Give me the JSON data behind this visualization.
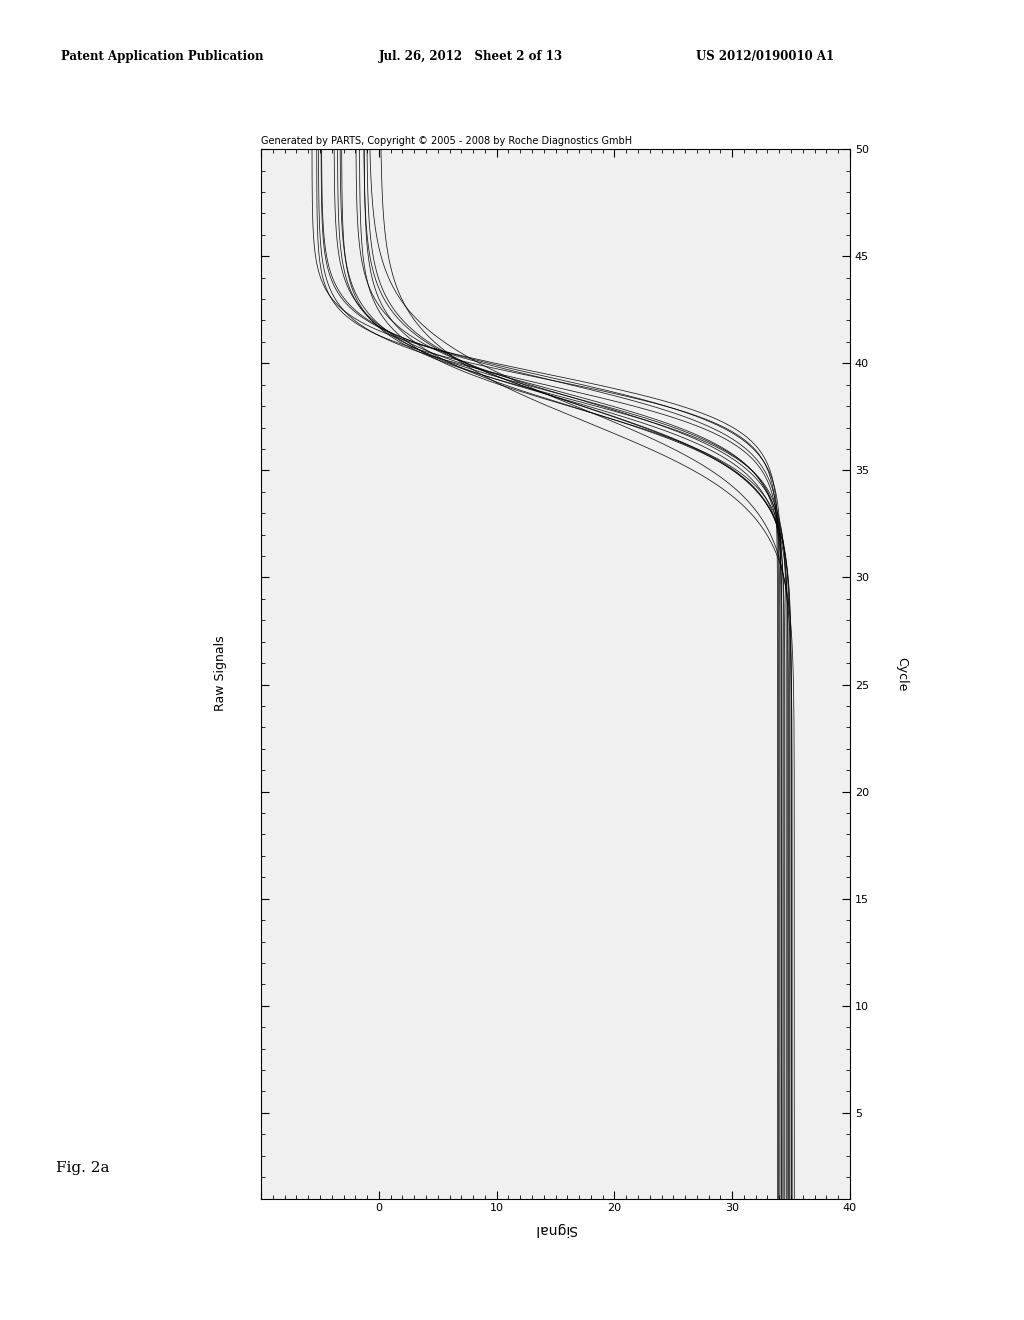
{
  "title_text": "Generated by PARTS, Copyright © 2005 - 2008 by Roche Diagnostics GmbH",
  "patent_header": "Patent Application Publication",
  "patent_date": "Jul. 26, 2012   Sheet 2 of 13",
  "patent_number": "US 2012/0190010 A1",
  "fig_label": "Fig. 2a",
  "x_label": "Signal",
  "y_label_right": "Cycle",
  "y_label_left": "Raw Signals",
  "signal_min": 0,
  "signal_max": 50,
  "cycle_min": 1,
  "cycle_max": 50,
  "n_curves": 16,
  "background_color": "#ffffff",
  "plot_bg_color": "#f0f0f0",
  "line_color": "#000000"
}
